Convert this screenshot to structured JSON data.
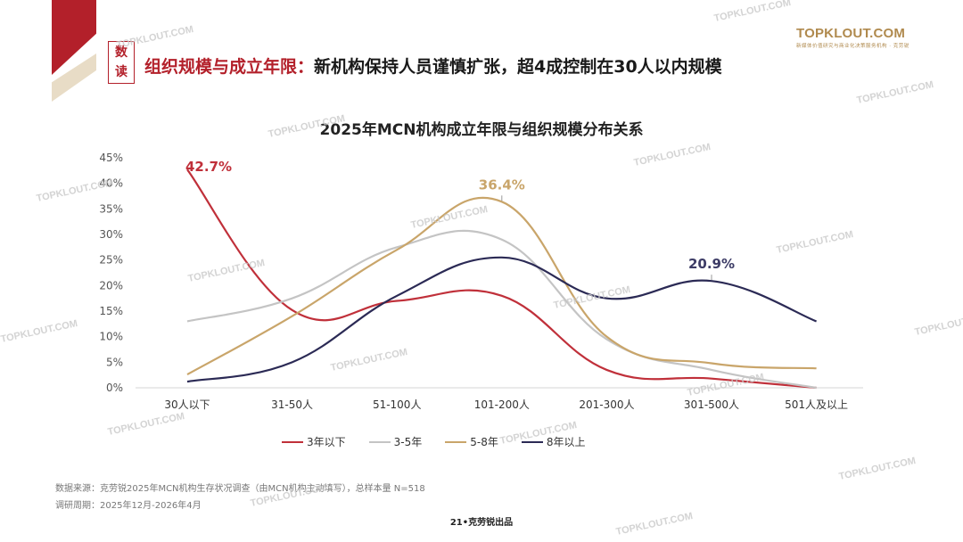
{
  "header": {
    "tag_chars": [
      "数",
      "读"
    ],
    "title_part1": "组织规模与成立年限：",
    "title_part2": "新机构保持人员谨慎扩张，超4成控制在30人以内规模"
  },
  "logo": {
    "name": "TOPKLOUT.COM",
    "tagline": "新媒体价值研究与商业化决策服务机构 · 克劳锐"
  },
  "watermark_text": "TOPKLOUT.COM",
  "chart_data": {
    "type": "line",
    "title": "2025年MCN机构成立年限与组织规模分布关系",
    "categories": [
      "30人以下",
      "31-50人",
      "51-100人",
      "101-200人",
      "201-300人",
      "301-500人",
      "501人及以上"
    ],
    "ylim": [
      0,
      45
    ],
    "yticks": [
      0,
      5,
      10,
      15,
      20,
      25,
      30,
      35,
      40,
      45
    ],
    "ytick_labels": [
      "0%",
      "5%",
      "10%",
      "15%",
      "20%",
      "25%",
      "30%",
      "35%",
      "40%",
      "45%"
    ],
    "series": [
      {
        "name": "3年以下",
        "color": "#c0303a",
        "values": [
          42.7,
          15.2,
          17.0,
          18.0,
          3.5,
          1.8,
          0.0
        ]
      },
      {
        "name": "3-5年",
        "color": "#c4c4c4",
        "values": [
          13.0,
          17.5,
          27.5,
          29.0,
          9.5,
          3.5,
          0.0
        ]
      },
      {
        "name": "5-8年",
        "color": "#c9a56a",
        "values": [
          2.6,
          14.0,
          27.0,
          36.4,
          10.0,
          4.8,
          3.8
        ]
      },
      {
        "name": "8年以上",
        "color": "#2b2a55",
        "values": [
          1.2,
          5.0,
          18.0,
          25.5,
          17.5,
          20.9,
          13.0
        ]
      }
    ],
    "annotations": [
      {
        "label": "42.7%",
        "series": 0,
        "index": 0,
        "color": "#c0303a"
      },
      {
        "label": "36.4%",
        "series": 2,
        "index": 3,
        "color": "#c9a56a"
      },
      {
        "label": "20.9%",
        "series": 3,
        "index": 5,
        "color": "#3d3c66"
      }
    ]
  },
  "footer": {
    "source": "数据来源：克劳锐2025年MCN机构生存状况调查（由MCN机构主动填写），总样本量 N=518",
    "period": "调研周期：2025年12月-2026年4月",
    "page": "21•克劳锐出品"
  }
}
